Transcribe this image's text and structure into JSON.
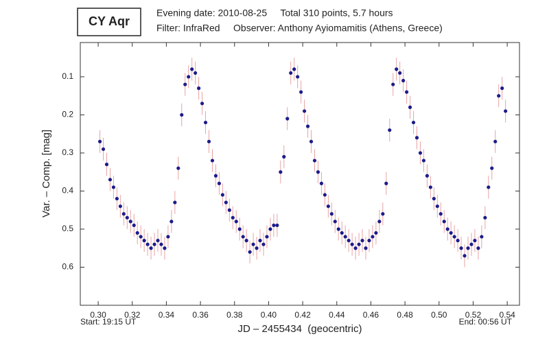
{
  "chart_data": {
    "type": "scatter",
    "title": "CY Aqr",
    "subtitle_lines": [
      "Evening date: 2010-08-25     Total 310 points, 5.7 hours",
      "Filter: InfraRed     Observer: Anthony Ayiomamitis (Athens, Greece)"
    ],
    "x_label": "JD – 2455434  (geocentric)",
    "y_label": "Var. – Comp. [mag]",
    "start_label": "Start: 19:15 UT",
    "end_label": "End: 00:56 UT",
    "xlim": [
      0.2895,
      0.5472
    ],
    "ylim": [
      0.01,
      0.7
    ],
    "y_inverted": true,
    "xticks": [
      {
        "value": 0.3,
        "label": "0.30"
      },
      {
        "value": 0.32,
        "label": "0.32"
      },
      {
        "value": 0.34,
        "label": "0.34"
      },
      {
        "value": 0.36,
        "label": "0.36"
      },
      {
        "value": 0.38,
        "label": "0.38"
      },
      {
        "value": 0.4,
        "label": "0.40"
      },
      {
        "value": 0.42,
        "label": "0.42"
      },
      {
        "value": 0.44,
        "label": "0.44"
      },
      {
        "value": 0.46,
        "label": "0.46"
      },
      {
        "value": 0.48,
        "label": "0.48"
      },
      {
        "value": 0.5,
        "label": "0.50"
      },
      {
        "value": 0.52,
        "label": "0.52"
      },
      {
        "value": 0.54,
        "label": "0.54"
      }
    ],
    "yticks": [
      0.1,
      0.2,
      0.3,
      0.4,
      0.5,
      0.6
    ],
    "error": 0.03,
    "error_color": "#e8a3a3",
    "series": [
      {
        "color": "#1c1c8a",
        "x": [
          0.301,
          0.303,
          0.305,
          0.307,
          0.309,
          0.311,
          0.313,
          0.315,
          0.317,
          0.319,
          0.321,
          0.323,
          0.325,
          0.327,
          0.329,
          0.331,
          0.333,
          0.335,
          0.337,
          0.339,
          0.341,
          0.343,
          0.345,
          0.347,
          0.349,
          0.351,
          0.353,
          0.355,
          0.357,
          0.359,
          0.361,
          0.363,
          0.365,
          0.367,
          0.369,
          0.371,
          0.373,
          0.375,
          0.377,
          0.379,
          0.381,
          0.383,
          0.385,
          0.387,
          0.389,
          0.391,
          0.393,
          0.395,
          0.397,
          0.399,
          0.401,
          0.403,
          0.405,
          0.407,
          0.409,
          0.411,
          0.413,
          0.415,
          0.417,
          0.419,
          0.421,
          0.423,
          0.425,
          0.427,
          0.429,
          0.431,
          0.433,
          0.435,
          0.437,
          0.439,
          0.441,
          0.443,
          0.445,
          0.447,
          0.449,
          0.451,
          0.453,
          0.455,
          0.457,
          0.459,
          0.461,
          0.463,
          0.465,
          0.467,
          0.469,
          0.471,
          0.473,
          0.475,
          0.477,
          0.479,
          0.481,
          0.483,
          0.485,
          0.487,
          0.489,
          0.491,
          0.493,
          0.495,
          0.497,
          0.499,
          0.501,
          0.503,
          0.505,
          0.507,
          0.509,
          0.511,
          0.513,
          0.515,
          0.517,
          0.519,
          0.521,
          0.523,
          0.525,
          0.527,
          0.529,
          0.531,
          0.533,
          0.535,
          0.537,
          0.539
        ],
        "values": [
          0.27,
          0.29,
          0.33,
          0.37,
          0.39,
          0.42,
          0.44,
          0.46,
          0.47,
          0.48,
          0.49,
          0.51,
          0.52,
          0.53,
          0.54,
          0.55,
          0.54,
          0.53,
          0.54,
          0.55,
          0.52,
          0.48,
          0.43,
          0.34,
          0.2,
          0.12,
          0.1,
          0.08,
          0.09,
          0.13,
          0.17,
          0.22,
          0.27,
          0.32,
          0.36,
          0.38,
          0.41,
          0.43,
          0.45,
          0.47,
          0.48,
          0.5,
          0.52,
          0.53,
          0.56,
          0.54,
          0.55,
          0.53,
          0.54,
          0.52,
          0.5,
          0.49,
          0.49,
          0.35,
          0.31,
          0.21,
          0.09,
          0.08,
          0.1,
          0.14,
          0.19,
          0.23,
          0.27,
          0.32,
          0.35,
          0.38,
          0.41,
          0.44,
          0.46,
          0.48,
          0.5,
          0.51,
          0.52,
          0.53,
          0.54,
          0.55,
          0.54,
          0.53,
          0.55,
          0.53,
          0.52,
          0.51,
          0.48,
          0.46,
          0.38,
          0.24,
          0.12,
          0.08,
          0.09,
          0.11,
          0.14,
          0.18,
          0.22,
          0.26,
          0.3,
          0.32,
          0.36,
          0.39,
          0.42,
          0.44,
          0.46,
          0.48,
          0.5,
          0.51,
          0.52,
          0.53,
          0.55,
          0.57,
          0.55,
          0.54,
          0.53,
          0.55,
          0.52,
          0.47,
          0.39,
          0.34,
          0.27,
          0.15,
          0.13,
          0.19
        ]
      }
    ]
  }
}
